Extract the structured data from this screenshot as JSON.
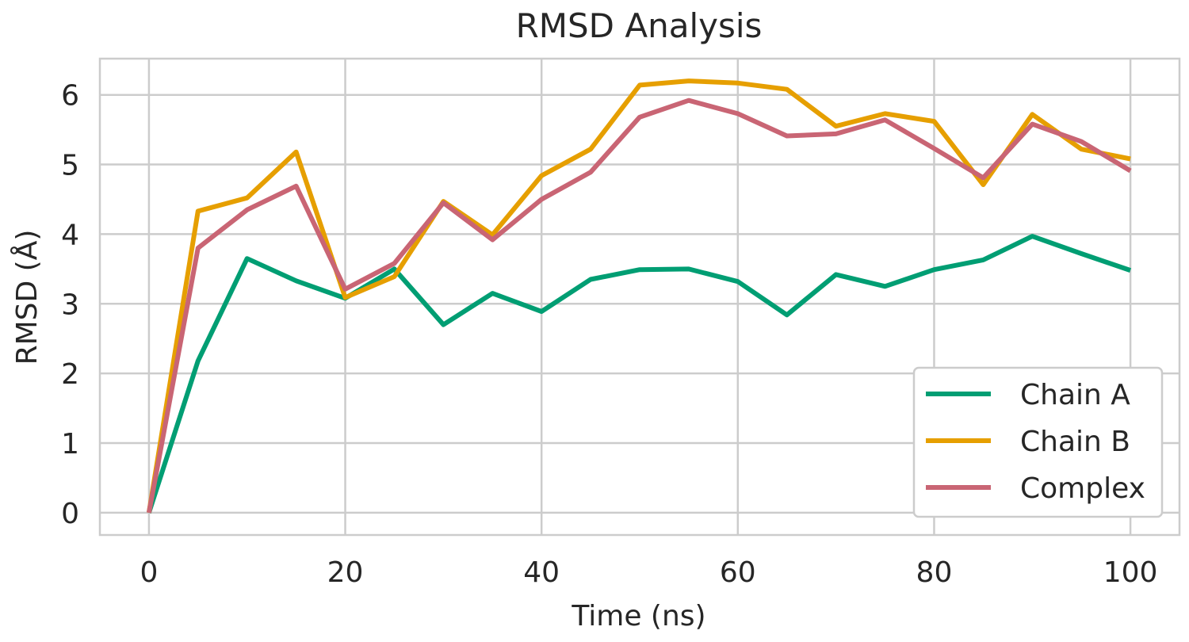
{
  "chart_data": {
    "type": "line",
    "title": "RMSD Analysis",
    "xlabel": "Time (ns)",
    "ylabel": "RMSD (Å)",
    "xlim": [
      -5,
      105
    ],
    "ylim": [
      -0.32,
      6.52
    ],
    "xticks": [
      0,
      20,
      40,
      60,
      80,
      100
    ],
    "yticks": [
      0,
      1,
      2,
      3,
      4,
      5,
      6
    ],
    "grid": true,
    "legend_position": "lower right",
    "x": [
      0,
      5,
      10,
      15,
      20,
      25,
      30,
      35,
      40,
      45,
      50,
      55,
      60,
      65,
      70,
      75,
      80,
      85,
      90,
      95,
      100
    ],
    "series": [
      {
        "name": "Chain A",
        "color": "#009e73",
        "values": [
          0.0,
          2.18,
          3.65,
          3.33,
          3.08,
          3.5,
          2.7,
          3.15,
          2.89,
          3.35,
          3.49,
          3.5,
          3.32,
          2.84,
          3.42,
          3.25,
          3.49,
          3.63,
          3.97,
          3.72,
          3.48
        ]
      },
      {
        "name": "Chain B",
        "color": "#e69f00",
        "values": [
          0.0,
          4.33,
          4.52,
          5.18,
          3.09,
          3.39,
          4.47,
          3.99,
          4.84,
          5.22,
          6.14,
          6.2,
          6.17,
          6.08,
          5.55,
          5.73,
          5.62,
          4.71,
          5.72,
          5.22,
          5.08
        ]
      },
      {
        "name": "Complex",
        "color": "#c96574",
        "values": [
          0.0,
          3.8,
          4.35,
          4.69,
          3.21,
          3.58,
          4.45,
          3.92,
          4.5,
          4.89,
          5.68,
          5.92,
          5.73,
          5.41,
          5.44,
          5.64,
          5.23,
          4.81,
          5.58,
          5.33,
          4.91
        ]
      }
    ]
  }
}
